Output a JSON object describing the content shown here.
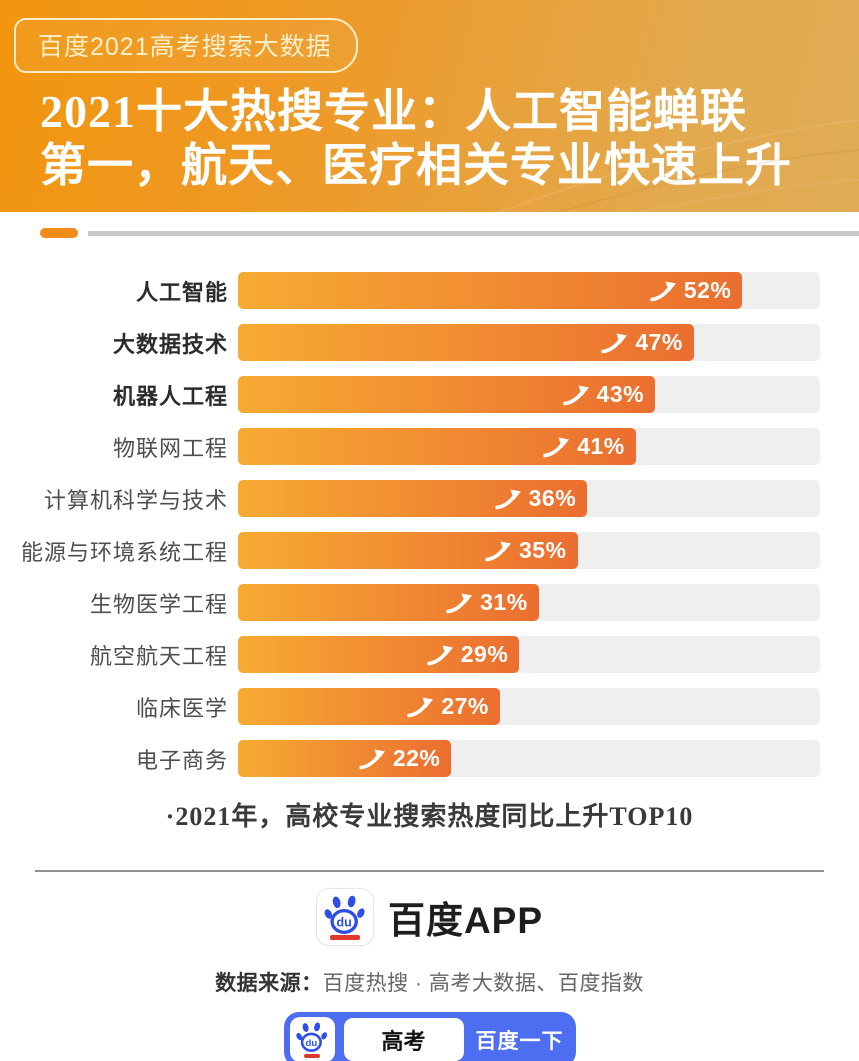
{
  "badge": {
    "label": "百度2021高考搜索大数据"
  },
  "header": {
    "title_line1": "2021十大热搜专业：人工智能蝉联",
    "title_line2": "第一，航天、医疗相关专业快速上升"
  },
  "chart_data": {
    "type": "bar",
    "orientation": "horizontal",
    "categories": [
      "人工智能",
      "大数据技术",
      "机器人工程",
      "物联网工程",
      "计算机科学与技术",
      "能源与环境系统工程",
      "生物医学工程",
      "航空航天工程",
      "临床医学",
      "电子商务"
    ],
    "values": [
      52,
      47,
      43,
      41,
      36,
      35,
      31,
      29,
      27,
      22
    ],
    "value_suffix": "%",
    "bold_top_n": 3,
    "xlim": [
      0,
      60
    ],
    "grid": false,
    "legend": false,
    "caption": "·2021年，高校专业搜索热度同比上升TOP10",
    "bar_gradient": [
      "#F7AB33",
      "#EB6E30"
    ],
    "track_color": "#EFEFEF"
  },
  "footer": {
    "logo_text": "百度APP",
    "logo_du": "du",
    "source_label": "数据来源：",
    "source_value": "百度热搜 · 高考大数据、百度指数",
    "search": {
      "query": "高考",
      "button_label": "百度一下",
      "du": "du"
    }
  },
  "colors": {
    "header_gradient_start": "#F2950E",
    "header_gradient_end": "#DFAC55",
    "accent_orange": "#F08C1B",
    "bar_start": "#F7AB33",
    "bar_end": "#EB6E30",
    "track_gray": "#EFEFEF",
    "baidu_blue": "#4E6EF2",
    "baidu_paw_blue": "#2E4FE5",
    "baidu_red": "#E0392F"
  }
}
